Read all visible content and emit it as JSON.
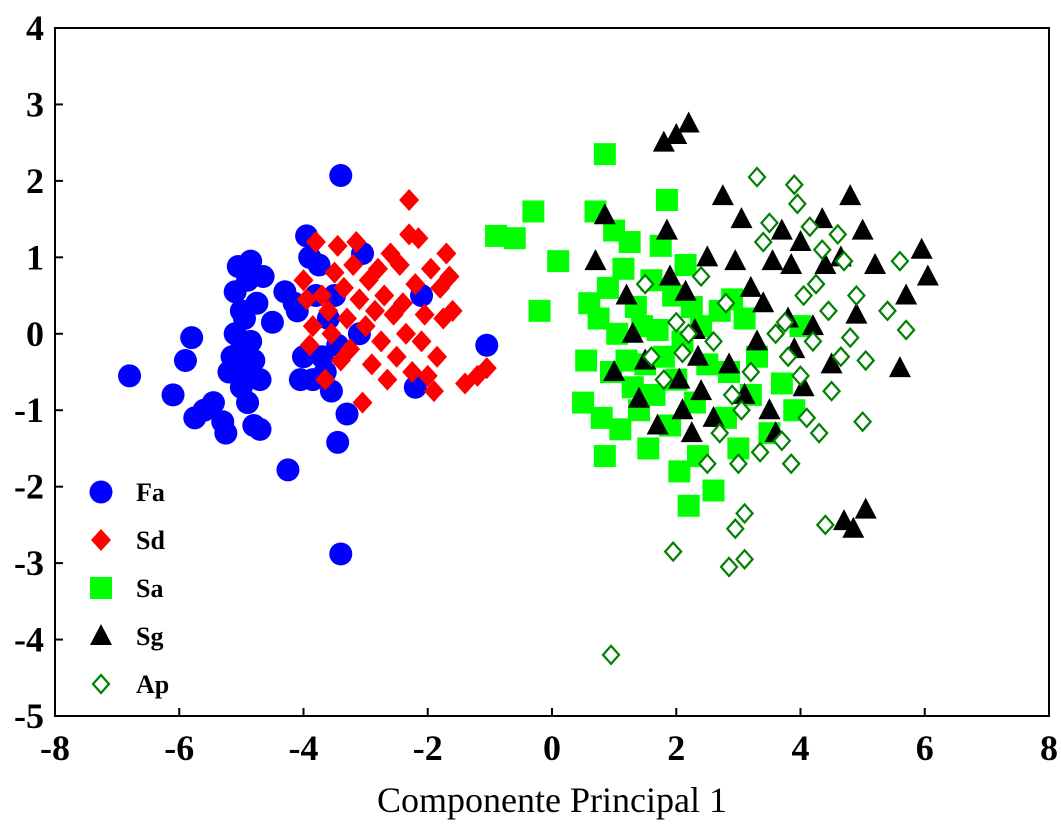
{
  "chart_data": {
    "type": "scatter",
    "title": "",
    "xlabel": "Componente Principal 1",
    "ylabel": "",
    "xlim": [
      -8,
      8
    ],
    "ylim": [
      -5,
      4
    ],
    "xticks": [
      "-8",
      "-6",
      "-4",
      "-2",
      "0",
      "2",
      "4",
      "6",
      "8"
    ],
    "yticks": [
      "-5",
      "-4",
      "-3",
      "-2",
      "-1",
      "0",
      "1",
      "2",
      "3",
      "4"
    ],
    "grid": false,
    "legend_position": "bottom-left",
    "series": [
      {
        "name": "Fa",
        "marker": "circle",
        "color": "#0000ff",
        "filled": true,
        "points": [
          [
            -6.8,
            -0.55
          ],
          [
            -6.1,
            -0.8
          ],
          [
            -5.9,
            -0.35
          ],
          [
            -5.8,
            -0.05
          ],
          [
            -5.75,
            -1.1
          ],
          [
            -5.6,
            -1.0
          ],
          [
            -5.45,
            -0.9
          ],
          [
            -5.3,
            -1.15
          ],
          [
            -5.25,
            -1.3
          ],
          [
            -5.2,
            -0.5
          ],
          [
            -5.15,
            -0.3
          ],
          [
            -5.1,
            0.0
          ],
          [
            -5.1,
            0.55
          ],
          [
            -5.05,
            0.88
          ],
          [
            -5.0,
            -0.7
          ],
          [
            -5.0,
            -0.2
          ],
          [
            -5.0,
            0.3
          ],
          [
            -4.95,
            0.2
          ],
          [
            -4.95,
            -0.5
          ],
          [
            -4.9,
            0.7
          ],
          [
            -4.9,
            -0.9
          ],
          [
            -4.85,
            -0.1
          ],
          [
            -4.85,
            0.95
          ],
          [
            -4.8,
            -1.2
          ],
          [
            -4.8,
            -0.35
          ],
          [
            -4.75,
            0.4
          ],
          [
            -4.7,
            -1.25
          ],
          [
            -4.7,
            -0.6
          ],
          [
            -4.65,
            0.75
          ],
          [
            -4.5,
            0.15
          ],
          [
            -4.3,
            0.55
          ],
          [
            -4.25,
            -1.78
          ],
          [
            -4.15,
            0.4
          ],
          [
            -4.1,
            0.3
          ],
          [
            -4.05,
            -0.6
          ],
          [
            -4.0,
            -0.3
          ],
          [
            -3.95,
            1.28
          ],
          [
            -3.9,
            1.0
          ],
          [
            -3.85,
            -0.6
          ],
          [
            -3.8,
            0.5
          ],
          [
            -3.75,
            0.9
          ],
          [
            -3.7,
            -0.3
          ],
          [
            -3.65,
            -0.5
          ],
          [
            -3.6,
            0.2
          ],
          [
            -3.55,
            -0.75
          ],
          [
            -3.5,
            0.5
          ],
          [
            -3.45,
            -0.15
          ],
          [
            -3.45,
            -1.42
          ],
          [
            -3.4,
            -2.88
          ],
          [
            -3.4,
            2.07
          ],
          [
            -3.3,
            -1.05
          ],
          [
            -3.1,
            0.0
          ],
          [
            -3.05,
            1.05
          ],
          [
            -2.2,
            -0.7
          ],
          [
            -2.1,
            0.5
          ],
          [
            -1.05,
            -0.15
          ]
        ]
      },
      {
        "name": "Sd",
        "marker": "diamond",
        "color": "#ff0000",
        "filled": true,
        "points": [
          [
            -4.0,
            0.7
          ],
          [
            -3.95,
            0.45
          ],
          [
            -3.9,
            -0.15
          ],
          [
            -3.85,
            0.1
          ],
          [
            -3.8,
            1.2
          ],
          [
            -3.7,
            0.5
          ],
          [
            -3.65,
            -0.6
          ],
          [
            -3.6,
            0.3
          ],
          [
            -3.55,
            0.0
          ],
          [
            -3.5,
            0.8
          ],
          [
            -3.45,
            1.15
          ],
          [
            -3.4,
            -0.35
          ],
          [
            -3.35,
            0.6
          ],
          [
            -3.3,
            0.2
          ],
          [
            -3.25,
            -0.2
          ],
          [
            -3.2,
            0.9
          ],
          [
            -3.15,
            1.2
          ],
          [
            -3.1,
            0.45
          ],
          [
            -3.05,
            -0.9
          ],
          [
            -3.0,
            0.1
          ],
          [
            -2.95,
            0.7
          ],
          [
            -2.9,
            -0.4
          ],
          [
            -2.85,
            0.3
          ],
          [
            -2.8,
            0.85
          ],
          [
            -2.75,
            -0.1
          ],
          [
            -2.7,
            0.5
          ],
          [
            -2.65,
            -0.6
          ],
          [
            -2.6,
            1.05
          ],
          [
            -2.55,
            0.25
          ],
          [
            -2.5,
            -0.3
          ],
          [
            -2.45,
            0.9
          ],
          [
            -2.4,
            0.4
          ],
          [
            -2.35,
            0.0
          ],
          [
            -2.3,
            1.3
          ],
          [
            -2.3,
            1.75
          ],
          [
            -2.25,
            -0.5
          ],
          [
            -2.2,
            0.65
          ],
          [
            -2.15,
            1.25
          ],
          [
            -2.1,
            -0.1
          ],
          [
            -2.05,
            0.25
          ],
          [
            -2.0,
            -0.55
          ],
          [
            -1.95,
            0.85
          ],
          [
            -1.9,
            -0.75
          ],
          [
            -1.85,
            -0.3
          ],
          [
            -1.8,
            0.6
          ],
          [
            -1.75,
            0.2
          ],
          [
            -1.7,
            1.05
          ],
          [
            -1.65,
            0.75
          ],
          [
            -1.6,
            0.3
          ],
          [
            -1.4,
            -0.65
          ],
          [
            -1.2,
            -0.55
          ],
          [
            -1.05,
            -0.45
          ]
        ]
      },
      {
        "name": "Sa",
        "marker": "square",
        "color": "#00ff00",
        "filled": true,
        "points": [
          [
            -0.9,
            1.28
          ],
          [
            -0.6,
            1.25
          ],
          [
            -0.3,
            1.6
          ],
          [
            -0.2,
            0.3
          ],
          [
            0.1,
            0.95
          ],
          [
            0.5,
            -0.9
          ],
          [
            0.55,
            -0.35
          ],
          [
            0.6,
            0.4
          ],
          [
            0.7,
            1.6
          ],
          [
            0.75,
            0.2
          ],
          [
            0.8,
            -1.1
          ],
          [
            0.85,
            -1.6
          ],
          [
            0.85,
            2.35
          ],
          [
            0.9,
            0.6
          ],
          [
            0.95,
            -0.5
          ],
          [
            1.0,
            1.35
          ],
          [
            1.05,
            0.0
          ],
          [
            1.1,
            -1.25
          ],
          [
            1.15,
            0.85
          ],
          [
            1.2,
            -0.35
          ],
          [
            1.25,
            1.2
          ],
          [
            1.3,
            -0.7
          ],
          [
            1.35,
            0.35
          ],
          [
            1.4,
            -1.0
          ],
          [
            1.45,
            0.1
          ],
          [
            1.5,
            -0.4
          ],
          [
            1.55,
            -1.5
          ],
          [
            1.6,
            0.7
          ],
          [
            1.65,
            -0.8
          ],
          [
            1.7,
            0.05
          ],
          [
            1.75,
            1.15
          ],
          [
            1.8,
            -0.3
          ],
          [
            1.85,
            1.75
          ],
          [
            1.9,
            -1.2
          ],
          [
            1.95,
            0.5
          ],
          [
            2.0,
            -0.6
          ],
          [
            2.05,
            -1.8
          ],
          [
            2.1,
            -0.1
          ],
          [
            2.15,
            0.9
          ],
          [
            2.2,
            -2.25
          ],
          [
            2.25,
            0.35
          ],
          [
            2.3,
            -0.9
          ],
          [
            2.35,
            -1.6
          ],
          [
            2.4,
            0.1
          ],
          [
            2.5,
            -0.4
          ],
          [
            2.6,
            -2.05
          ],
          [
            2.7,
            0.3
          ],
          [
            2.8,
            -1.1
          ],
          [
            2.85,
            -0.5
          ],
          [
            2.9,
            0.45
          ],
          [
            3.0,
            -1.5
          ],
          [
            3.1,
            0.2
          ],
          [
            3.2,
            -0.8
          ],
          [
            3.3,
            -0.3
          ],
          [
            3.5,
            -1.3
          ],
          [
            3.7,
            -0.65
          ],
          [
            3.9,
            -1.0
          ],
          [
            4.0,
            0.1
          ]
        ]
      },
      {
        "name": "Sg",
        "marker": "triangle",
        "color": "#000000",
        "filled": true,
        "points": [
          [
            0.7,
            0.95
          ],
          [
            0.85,
            1.55
          ],
          [
            1.0,
            -0.5
          ],
          [
            1.2,
            0.5
          ],
          [
            1.3,
            0.0
          ],
          [
            1.4,
            -0.85
          ],
          [
            1.5,
            -0.35
          ],
          [
            1.7,
            -1.2
          ],
          [
            1.8,
            2.5
          ],
          [
            1.85,
            1.35
          ],
          [
            1.9,
            0.75
          ],
          [
            2.0,
            2.6
          ],
          [
            2.05,
            -0.6
          ],
          [
            2.1,
            -1.0
          ],
          [
            2.15,
            0.55
          ],
          [
            2.2,
            2.75
          ],
          [
            2.25,
            -1.3
          ],
          [
            2.3,
            0.05
          ],
          [
            2.35,
            -0.3
          ],
          [
            2.4,
            -0.75
          ],
          [
            2.5,
            1.0
          ],
          [
            2.6,
            -1.1
          ],
          [
            2.75,
            1.8
          ],
          [
            2.85,
            -0.4
          ],
          [
            2.95,
            0.95
          ],
          [
            3.05,
            1.5
          ],
          [
            3.1,
            -0.8
          ],
          [
            3.2,
            0.6
          ],
          [
            3.3,
            -0.1
          ],
          [
            3.4,
            0.4
          ],
          [
            3.5,
            -1.0
          ],
          [
            3.55,
            0.95
          ],
          [
            3.6,
            -1.3
          ],
          [
            3.7,
            1.35
          ],
          [
            3.8,
            0.2
          ],
          [
            3.85,
            0.9
          ],
          [
            3.9,
            -0.2
          ],
          [
            4.0,
            1.2
          ],
          [
            4.05,
            -0.7
          ],
          [
            4.2,
            0.1
          ],
          [
            4.35,
            1.5
          ],
          [
            4.4,
            0.9
          ],
          [
            4.5,
            -0.4
          ],
          [
            4.65,
            1.0
          ],
          [
            4.7,
            -2.45
          ],
          [
            4.8,
            1.8
          ],
          [
            4.85,
            -2.55
          ],
          [
            4.9,
            0.25
          ],
          [
            5.0,
            1.35
          ],
          [
            5.05,
            -2.3
          ],
          [
            5.2,
            0.9
          ],
          [
            5.6,
            -0.45
          ],
          [
            5.7,
            0.5
          ],
          [
            5.95,
            1.1
          ],
          [
            6.05,
            0.75
          ]
        ]
      },
      {
        "name": "Ap",
        "marker": "diamond-open",
        "color": "#008000",
        "filled": false,
        "points": [
          [
            0.95,
            -4.2
          ],
          [
            1.5,
            0.65
          ],
          [
            1.6,
            -0.3
          ],
          [
            1.8,
            -0.6
          ],
          [
            1.95,
            -2.85
          ],
          [
            2.0,
            0.15
          ],
          [
            2.1,
            -0.25
          ],
          [
            2.2,
            0.0
          ],
          [
            2.4,
            0.75
          ],
          [
            2.5,
            -1.7
          ],
          [
            2.6,
            -0.1
          ],
          [
            2.7,
            -1.3
          ],
          [
            2.8,
            0.4
          ],
          [
            2.85,
            -3.05
          ],
          [
            2.9,
            -0.8
          ],
          [
            2.95,
            -2.55
          ],
          [
            3.0,
            -1.7
          ],
          [
            3.05,
            -1.0
          ],
          [
            3.1,
            -2.35
          ],
          [
            3.1,
            -2.95
          ],
          [
            3.2,
            -0.5
          ],
          [
            3.3,
            2.05
          ],
          [
            3.35,
            -1.55
          ],
          [
            3.4,
            1.2
          ],
          [
            3.5,
            1.45
          ],
          [
            3.6,
            0.0
          ],
          [
            3.7,
            -1.4
          ],
          [
            3.75,
            0.15
          ],
          [
            3.8,
            -0.3
          ],
          [
            3.85,
            -1.7
          ],
          [
            3.9,
            1.95
          ],
          [
            3.95,
            1.7
          ],
          [
            4.0,
            -0.55
          ],
          [
            4.05,
            0.5
          ],
          [
            4.1,
            -1.1
          ],
          [
            4.15,
            1.4
          ],
          [
            4.2,
            -0.1
          ],
          [
            4.25,
            0.65
          ],
          [
            4.3,
            -1.3
          ],
          [
            4.35,
            1.1
          ],
          [
            4.4,
            -2.5
          ],
          [
            4.45,
            0.3
          ],
          [
            4.5,
            -0.75
          ],
          [
            4.6,
            1.3
          ],
          [
            4.65,
            -0.3
          ],
          [
            4.7,
            0.95
          ],
          [
            4.8,
            -0.05
          ],
          [
            4.9,
            0.5
          ],
          [
            5.0,
            -1.15
          ],
          [
            5.05,
            -0.35
          ],
          [
            5.4,
            0.3
          ],
          [
            5.6,
            0.95
          ],
          [
            5.7,
            0.05
          ]
        ]
      }
    ]
  }
}
